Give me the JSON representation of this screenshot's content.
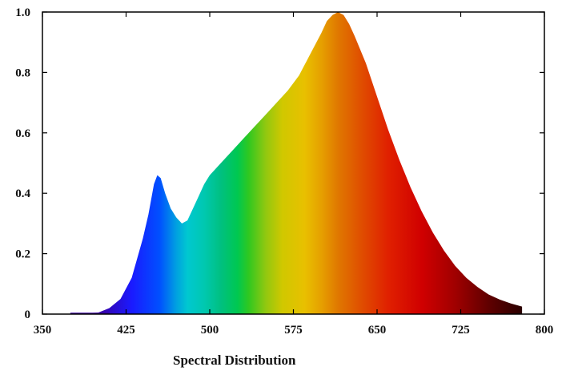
{
  "chart_data": {
    "type": "area",
    "xlabel": "Spectral Distribution",
    "ylabel": "",
    "xlim": [
      350,
      800
    ],
    "ylim": [
      0,
      1.0
    ],
    "x_ticks": [
      350,
      425,
      500,
      575,
      650,
      725,
      800
    ],
    "x_tick_labels": [
      "350",
      "425",
      "500",
      "575",
      "650",
      "725",
      "800"
    ],
    "y_ticks": [
      0,
      0.2,
      0.4,
      0.6,
      0.8,
      1.0
    ],
    "y_tick_labels": [
      "0",
      "0.2",
      "0.4",
      "0.6",
      "0.8",
      "1.0"
    ],
    "grid": false,
    "fill": "visible-spectrum color gradient under curve",
    "series": [
      {
        "x": [
          375,
          400,
          410,
          420,
          430,
          440,
          445,
          450,
          453,
          456,
          460,
          465,
          470,
          475,
          480,
          485,
          490,
          495,
          500,
          510,
          520,
          530,
          540,
          550,
          560,
          570,
          580,
          590,
          600,
          605,
          610,
          615,
          620,
          625,
          630,
          640,
          650,
          660,
          670,
          680,
          690,
          700,
          710,
          720,
          730,
          740,
          750,
          760,
          770,
          780
        ],
        "y": [
          0.0,
          0.005,
          0.02,
          0.05,
          0.12,
          0.25,
          0.33,
          0.43,
          0.46,
          0.45,
          0.4,
          0.35,
          0.32,
          0.3,
          0.31,
          0.35,
          0.39,
          0.43,
          0.46,
          0.5,
          0.54,
          0.58,
          0.62,
          0.66,
          0.7,
          0.74,
          0.79,
          0.86,
          0.93,
          0.97,
          0.99,
          1.0,
          0.99,
          0.96,
          0.92,
          0.83,
          0.72,
          0.61,
          0.51,
          0.42,
          0.34,
          0.27,
          0.21,
          0.16,
          0.12,
          0.09,
          0.065,
          0.048,
          0.035,
          0.025
        ]
      }
    ]
  }
}
